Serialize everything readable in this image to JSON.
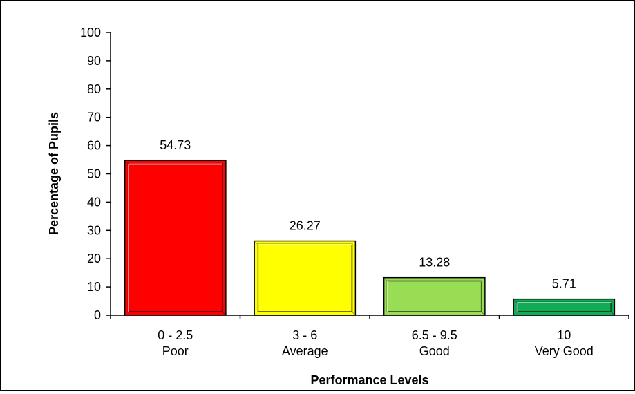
{
  "chart_data": {
    "type": "bar",
    "title": "",
    "xlabel": "Performance Levels",
    "ylabel": "Percentage of Pupils",
    "ylim": [
      0,
      100
    ],
    "yticks": [
      "0",
      "10",
      "20",
      "30",
      "40",
      "50",
      "60",
      "70",
      "80",
      "90",
      "100"
    ],
    "categories": [
      {
        "range": "0 - 2.5",
        "level": "Poor"
      },
      {
        "range": "3 - 6",
        "level": "Average"
      },
      {
        "range": "6.5 - 9.5",
        "level": "Good"
      },
      {
        "range": "10",
        "level": "Very Good"
      }
    ],
    "values": [
      54.73,
      26.27,
      13.28,
      5.71
    ],
    "value_labels": [
      "54.73",
      "26.27",
      "13.28",
      "5.71"
    ],
    "bar_colors": [
      "#ff0000",
      "#ffff00",
      "#99dd55",
      "#11aa55"
    ],
    "grid": false,
    "legend": "none"
  }
}
